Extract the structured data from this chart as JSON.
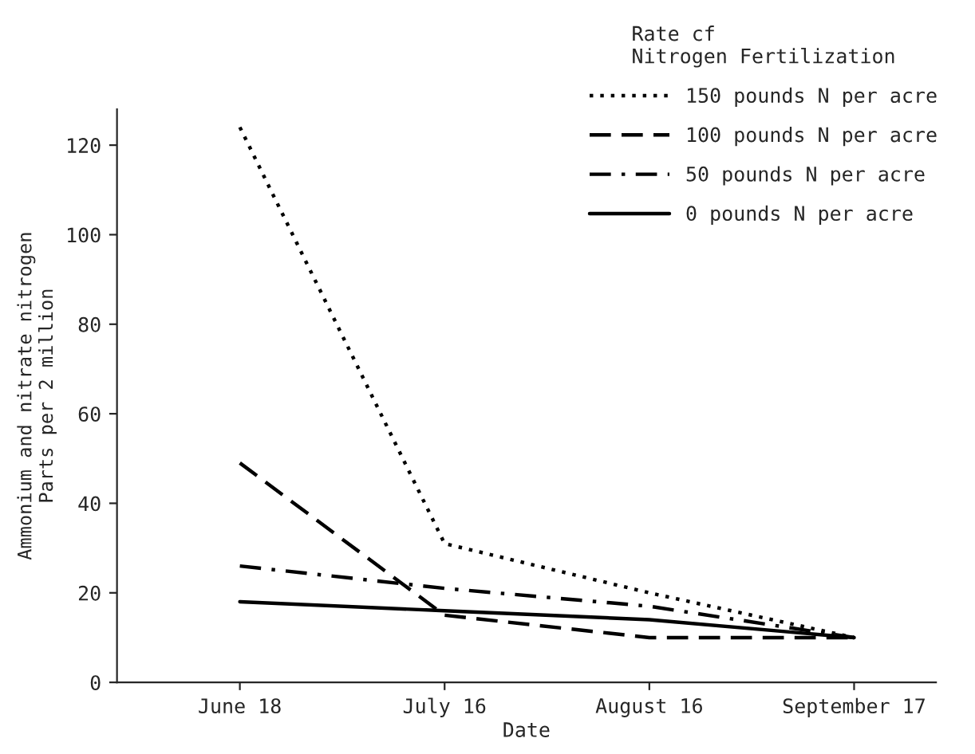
{
  "chart_data": {
    "type": "line",
    "xlabel": "Date",
    "ylabel": "Ammonium and nitrate nitrogen\nParts per 2 million",
    "legend_title": "Rate cf\nNitrogen Fertilization",
    "categories": [
      "June 18",
      "July 16",
      "August 16",
      "September 17"
    ],
    "series": [
      {
        "name": "150 pounds N per acre",
        "color": "#000000",
        "line_style": "dotted",
        "values": [
          124,
          31,
          20,
          10
        ]
      },
      {
        "name": "100 pounds N per acre",
        "color": "#000000",
        "line_style": "dashed",
        "values": [
          49,
          15,
          10,
          10
        ]
      },
      {
        "name": "50 pounds N per acre",
        "color": "#000000",
        "line_style": "dashdot",
        "values": [
          26,
          21,
          17,
          10
        ]
      },
      {
        "name": "0 pounds N per acre",
        "color": "#000000",
        "line_style": "solid",
        "values": [
          18,
          16,
          14,
          10
        ]
      }
    ],
    "ylim": [
      0,
      128
    ],
    "yticks": [
      0,
      20,
      40,
      60,
      80,
      100,
      120
    ],
    "grid": false,
    "legend": "top right",
    "marker": "none"
  }
}
